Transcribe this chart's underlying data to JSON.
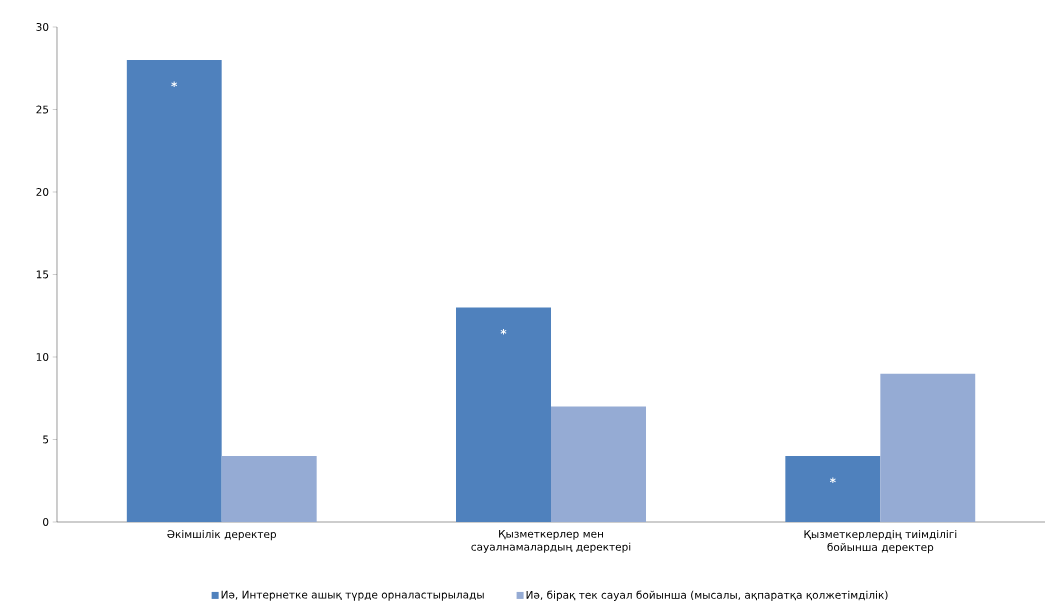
{
  "chart_data": {
    "type": "bar",
    "categories": [
      "Әкімшілік деректер",
      "Қызметкерлер мен сауалнамалардың деректері",
      "Қызметкерлердің тиімділігі бойынша деректер"
    ],
    "series": [
      {
        "name": "Иә, Интернетке ашық түрде орналастырылады",
        "color": "#4f81bd",
        "values": [
          28,
          13,
          4
        ]
      },
      {
        "name": "Иә, бірақ тек сауал бойынша (мысалы, ақпаратқа қолжетімділік)",
        "color": "#95abd4",
        "values": [
          4,
          7,
          9
        ]
      }
    ],
    "ylim": [
      0,
      30
    ],
    "yticks": [
      0,
      5,
      10,
      15,
      20,
      25,
      30
    ],
    "annotations": [
      "*",
      "*",
      "*"
    ],
    "grid": false,
    "legend": "bottom"
  }
}
